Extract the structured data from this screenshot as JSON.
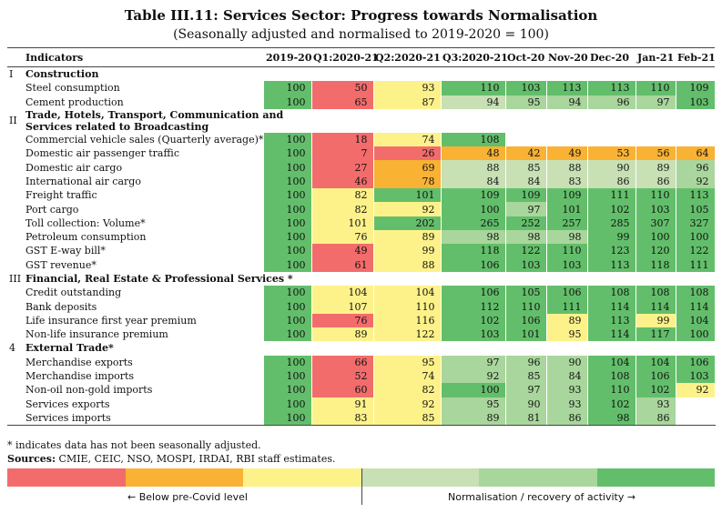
{
  "header": {
    "title": "Table III.11: Services Sector: Progress towards Normalisation",
    "subtitle": "(Seasonally adjusted and normalised to 2019-2020 = 100)"
  },
  "table": {
    "columns": [
      "Indicators",
      "2019-20",
      "Q1:2020-21",
      "Q2:2020-21",
      "Q3:2020-21",
      "Oct-20",
      "Nov-20",
      "Dec-20",
      "Jan-21",
      "Feb-21"
    ],
    "palette": [
      "#f36c6c",
      "#f9b233",
      "#fdf28a",
      "#c8e0b4",
      "#a9d69c",
      "#63be6b"
    ],
    "rows": [
      {
        "number": "I",
        "label": "Construction"
      },
      {
        "label": "Steel consumption",
        "values": [
          100,
          50,
          93,
          110,
          103,
          113,
          113,
          110,
          109
        ],
        "colors": [
          5,
          0,
          2,
          5,
          5,
          5,
          5,
          5,
          5
        ]
      },
      {
        "label": "Cement production",
        "values": [
          100,
          65,
          87,
          94,
          95,
          94,
          96,
          97,
          103
        ],
        "colors": [
          5,
          0,
          2,
          3,
          4,
          4,
          4,
          4,
          5
        ]
      },
      {
        "number": "II",
        "label": "Trade, Hotels, Transport, Communication and Services related to Broadcasting"
      },
      {
        "label": "Commercial vehicle sales (Quarterly average)*",
        "values": [
          100,
          18,
          74,
          108,
          null,
          null,
          null,
          null,
          null
        ],
        "colors": [
          5,
          0,
          2,
          5,
          null,
          null,
          null,
          null,
          null
        ]
      },
      {
        "label": "Domestic air passenger traffic",
        "values": [
          100,
          7,
          26,
          48,
          42,
          49,
          53,
          56,
          64
        ],
        "colors": [
          5,
          0,
          0,
          1,
          1,
          1,
          1,
          1,
          1
        ]
      },
      {
        "label": "Domestic air cargo",
        "values": [
          100,
          27,
          69,
          88,
          85,
          88,
          90,
          89,
          96
        ],
        "colors": [
          5,
          0,
          1,
          3,
          3,
          3,
          3,
          3,
          4
        ]
      },
      {
        "label": "International air cargo",
        "values": [
          100,
          46,
          78,
          84,
          84,
          83,
          86,
          86,
          92
        ],
        "colors": [
          5,
          0,
          1,
          3,
          3,
          3,
          3,
          3,
          4
        ]
      },
      {
        "label": "Freight traffic",
        "values": [
          100,
          82,
          101,
          109,
          109,
          109,
          111,
          110,
          113
        ],
        "colors": [
          5,
          2,
          5,
          5,
          5,
          5,
          5,
          5,
          5
        ]
      },
      {
        "label": "Port cargo",
        "values": [
          100,
          82,
          92,
          100,
          97,
          101,
          102,
          103,
          105
        ],
        "colors": [
          5,
          2,
          2,
          5,
          4,
          5,
          5,
          5,
          5
        ]
      },
      {
        "label": "Toll collection: Volume*",
        "values": [
          100,
          101,
          202,
          265,
          252,
          257,
          285,
          307,
          327
        ],
        "colors": [
          5,
          2,
          5,
          5,
          5,
          5,
          5,
          5,
          5
        ]
      },
      {
        "label": "Petroleum consumption",
        "values": [
          100,
          76,
          89,
          98,
          98,
          98,
          99,
          100,
          100
        ],
        "colors": [
          5,
          2,
          2,
          4,
          4,
          4,
          5,
          5,
          5
        ]
      },
      {
        "label": "GST E-way bill*",
        "values": [
          100,
          49,
          99,
          118,
          122,
          110,
          123,
          120,
          122
        ],
        "colors": [
          5,
          0,
          2,
          5,
          5,
          5,
          5,
          5,
          5
        ]
      },
      {
        "label": "GST revenue*",
        "values": [
          100,
          61,
          88,
          106,
          103,
          103,
          113,
          118,
          111
        ],
        "colors": [
          5,
          0,
          2,
          5,
          5,
          5,
          5,
          5,
          5
        ]
      },
      {
        "number": "III",
        "label": "Financial, Real Estate & Professional Services *"
      },
      {
        "label": "Credit outstanding",
        "values": [
          100,
          104,
          104,
          106,
          105,
          106,
          108,
          108,
          108
        ],
        "colors": [
          5,
          2,
          2,
          5,
          5,
          5,
          5,
          5,
          5
        ]
      },
      {
        "label": "Bank deposits",
        "values": [
          100,
          107,
          110,
          112,
          110,
          111,
          114,
          114,
          114
        ],
        "colors": [
          5,
          2,
          2,
          5,
          5,
          5,
          5,
          5,
          5
        ]
      },
      {
        "label": "Life insurance first year premium",
        "values": [
          100,
          76,
          116,
          102,
          106,
          89,
          113,
          99,
          104
        ],
        "colors": [
          5,
          0,
          2,
          5,
          5,
          2,
          5,
          2,
          5
        ]
      },
      {
        "label": "Non-life insurance premium",
        "values": [
          100,
          89,
          122,
          103,
          101,
          95,
          114,
          117,
          100
        ],
        "colors": [
          5,
          2,
          2,
          5,
          5,
          2,
          5,
          5,
          5
        ]
      },
      {
        "number": "4",
        "label": "External Trade*"
      },
      {
        "label": "Merchandise exports",
        "values": [
          100,
          66,
          95,
          97,
          96,
          90,
          104,
          104,
          106
        ],
        "colors": [
          5,
          0,
          2,
          4,
          4,
          4,
          5,
          5,
          5
        ]
      },
      {
        "label": "Merchandise imports",
        "values": [
          100,
          52,
          74,
          92,
          85,
          84,
          108,
          106,
          103
        ],
        "colors": [
          5,
          0,
          2,
          4,
          4,
          4,
          5,
          5,
          5
        ]
      },
      {
        "label": "Non-oil non-gold imports",
        "values": [
          100,
          60,
          82,
          100,
          97,
          93,
          110,
          102,
          92
        ],
        "colors": [
          5,
          0,
          2,
          5,
          4,
          4,
          5,
          5,
          2
        ]
      },
      {
        "label": "Services exports",
        "values": [
          100,
          91,
          92,
          95,
          90,
          93,
          102,
          93,
          null
        ],
        "colors": [
          5,
          2,
          2,
          4,
          4,
          4,
          5,
          4,
          null
        ]
      },
      {
        "label": "Services imports",
        "values": [
          100,
          83,
          85,
          89,
          81,
          86,
          98,
          86,
          null
        ],
        "colors": [
          5,
          2,
          2,
          4,
          4,
          4,
          5,
          4,
          null
        ]
      }
    ]
  },
  "footnote": "* indicates data has not been seasonally adjusted.",
  "sources": {
    "label": "Sources:",
    "text": " CMIE, CEIC, NSO, MOSPI, IRDAI, RBI staff estimates."
  },
  "legend": {
    "left": "← Below pre-Covid level",
    "right": "Normalisation / recovery of activity →"
  }
}
